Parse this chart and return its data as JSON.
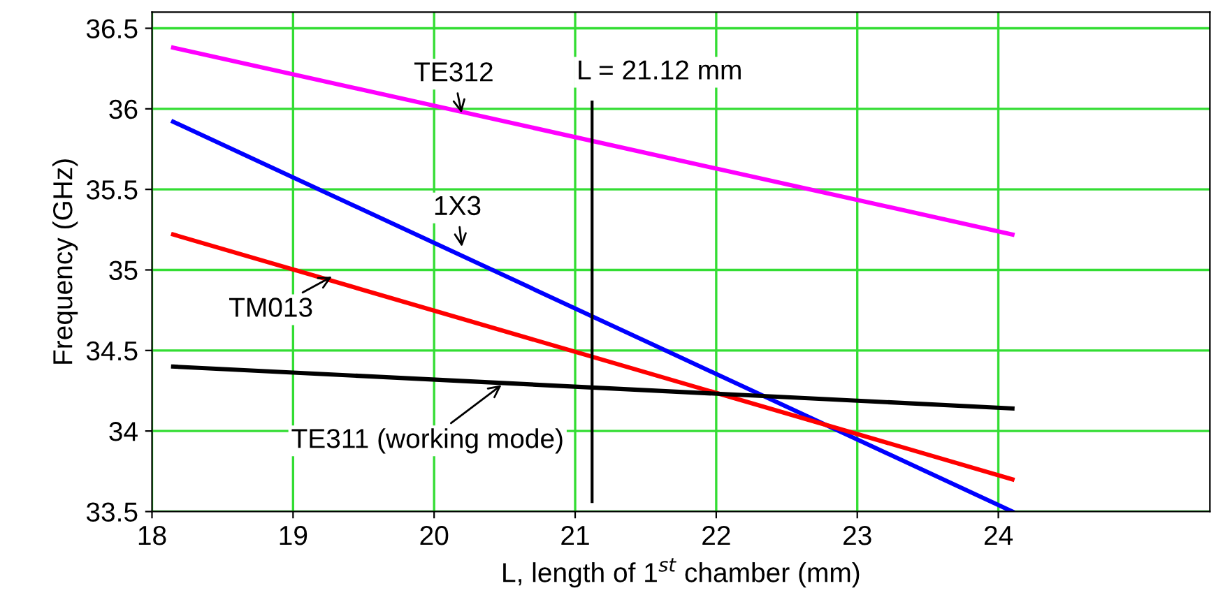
{
  "chart_data": {
    "type": "line",
    "xlabel": "L, length of 1$^{st}$ chamber (mm)",
    "ylabel": "Frequency (GHz)",
    "xlim": [
      18,
      25.5
    ],
    "xticks": [
      18,
      19,
      20,
      21,
      22,
      23,
      24
    ],
    "ylim": [
      33.5,
      36.6
    ],
    "yticks": [
      33.5,
      34,
      34.5,
      35,
      35.5,
      36,
      36.5
    ],
    "grid": true,
    "x": [
      18.15,
      24.1
    ],
    "marker": "none",
    "line_style": "solid",
    "series": [
      {
        "color": "#ff00ff",
        "values": [
          36.38,
          35.22
        ]
      },
      {
        "color": "#0000ff",
        "values": [
          35.92,
          33.5
        ]
      },
      {
        "color": "#ff0000",
        "values": [
          35.22,
          33.7
        ]
      },
      {
        "color": "#000000",
        "values": [
          34.4,
          34.14
        ]
      }
    ],
    "ref_lines": [
      {
        "axis": "x",
        "value": 21.12,
        "label": "L = 21.12 mm",
        "color": "#000000"
      }
    ],
    "annotations": [
      {
        "text": "TE312",
        "x": 20.2,
        "y": 35.95
      },
      {
        "text": "1X3",
        "x": 20.2,
        "y": 35.12
      },
      {
        "text": "TM013",
        "x": 19.3,
        "y": 34.97
      },
      {
        "text": "TE311 (working mode)",
        "x": 20.5,
        "y": 34.3
      }
    ]
  }
}
